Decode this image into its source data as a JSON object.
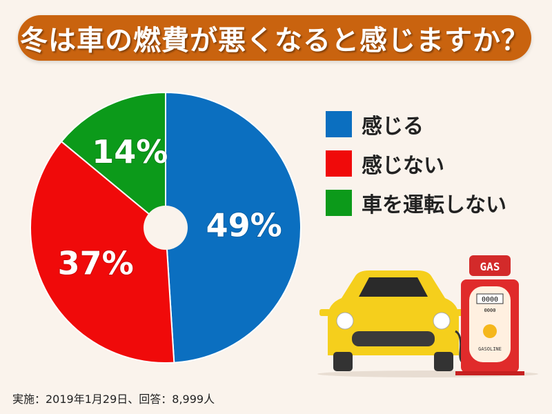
{
  "chart_data": {
    "type": "pie",
    "title": "冬は車の燃費が悪くなると感じますか？",
    "categories": [
      "感じる",
      "感じない",
      "車を運転しない"
    ],
    "values": [
      49,
      37,
      14
    ],
    "labels": [
      "49%",
      "37%",
      "14%"
    ],
    "colors": [
      "#0b6fc0",
      "#f00a0a",
      "#0c9a1a"
    ],
    "legend_position": "right",
    "start": "top-clockwise"
  },
  "note": "実施：2019年1月29日、回答：8,999人",
  "illustration": {
    "pump_sign": "GAS",
    "pump_counter": "0000",
    "pump_counter_small": "0000",
    "pump_label": "GASOLINE"
  }
}
